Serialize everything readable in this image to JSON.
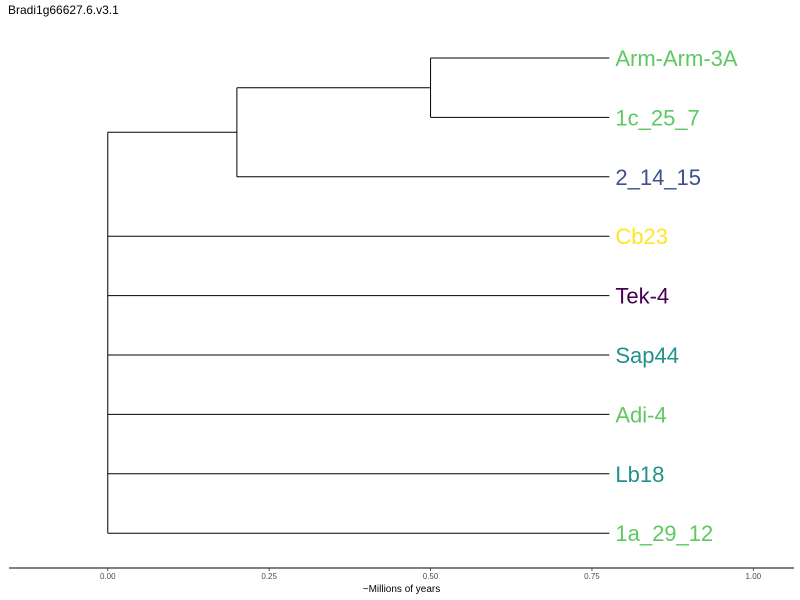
{
  "title": "Bradi1g66627.6.v3.1",
  "chart_data": {
    "type": "dendrogram",
    "xlabel": "~Millions of years",
    "xlim": [
      -0.153,
      1.063
    ],
    "xticks": [
      0.0,
      0.25,
      0.5,
      0.75,
      1.0
    ],
    "xtick_labels": [
      "0.00",
      "0.25",
      "0.50",
      "0.75",
      "1.00"
    ],
    "tip_x": 0.777,
    "grid": false,
    "nodes": [
      {
        "id": "root",
        "x": 0.0
      },
      {
        "id": "n1",
        "x": 0.2,
        "parent": "root"
      },
      {
        "id": "n2",
        "x": 0.5,
        "parent": "n1"
      }
    ],
    "tips": [
      {
        "label": "Arm-Arm-3A",
        "parent": "n2",
        "color": "#5ec962"
      },
      {
        "label": "1c_25_7",
        "parent": "n2",
        "color": "#5ec962"
      },
      {
        "label": "2_14_15",
        "parent": "n1",
        "color": "#3b528b"
      },
      {
        "label": "Cb23",
        "parent": "root",
        "color": "#fde725"
      },
      {
        "label": "Tek-4",
        "parent": "root",
        "color": "#440154"
      },
      {
        "label": "Sap44",
        "parent": "root",
        "color": "#21918c"
      },
      {
        "label": "Adi-4",
        "parent": "root",
        "color": "#5ec962"
      },
      {
        "label": "Lb18",
        "parent": "root",
        "color": "#21918c"
      },
      {
        "label": "1a_29_12",
        "parent": "root",
        "color": "#5ec962"
      }
    ]
  }
}
